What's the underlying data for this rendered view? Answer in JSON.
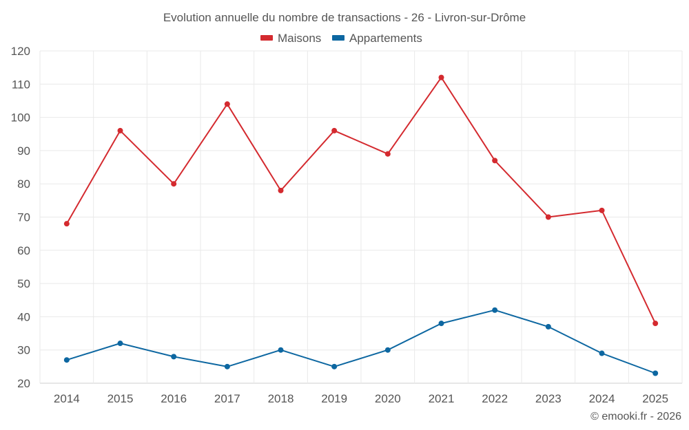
{
  "chart_data": {
    "type": "line",
    "title": "Evolution annuelle du nombre de transactions - 26 - Livron-sur-Drôme",
    "categories": [
      "2014",
      "2015",
      "2016",
      "2017",
      "2018",
      "2019",
      "2020",
      "2021",
      "2022",
      "2023",
      "2024",
      "2025"
    ],
    "series": [
      {
        "name": "Maisons",
        "color": "#d42a2f",
        "values": [
          68,
          96,
          80,
          104,
          78,
          96,
          89,
          112,
          87,
          70,
          72,
          38
        ]
      },
      {
        "name": "Appartements",
        "color": "#0d67a1",
        "values": [
          27,
          32,
          28,
          25,
          30,
          25,
          30,
          38,
          42,
          37,
          29,
          23
        ]
      }
    ],
    "ylim": [
      20,
      120
    ],
    "yticks": [
      20,
      30,
      40,
      50,
      60,
      70,
      80,
      90,
      100,
      110,
      120
    ],
    "grid": true,
    "legend_position": "top-center",
    "xlabel": "",
    "ylabel": ""
  },
  "credit": "© emooki.fr - 2026"
}
